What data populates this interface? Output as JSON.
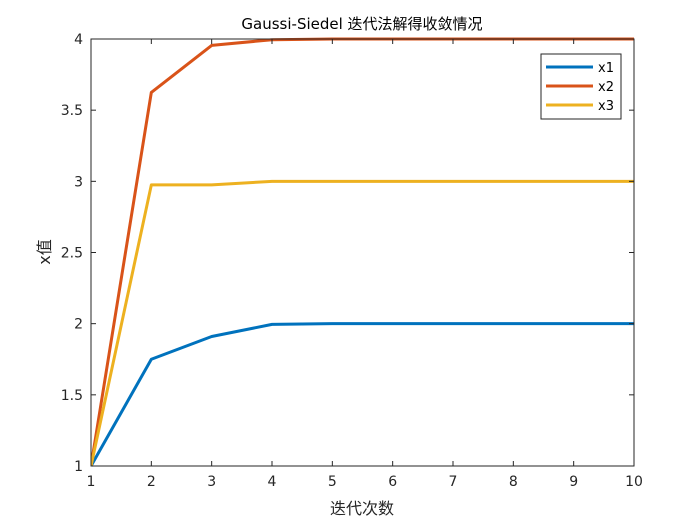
{
  "chart_data": {
    "type": "line",
    "title": "Gaussi-Siedel 迭代法解得收敛情况",
    "xlabel": "迭代次数",
    "ylabel": "x值",
    "xlim": [
      1,
      10
    ],
    "ylim": [
      1,
      4
    ],
    "x_ticks": [
      "1",
      "2",
      "3",
      "4",
      "5",
      "6",
      "7",
      "8",
      "9",
      "10"
    ],
    "y_ticks": [
      "1",
      "1.5",
      "2",
      "2.5",
      "3",
      "3.5",
      "4"
    ],
    "x": [
      1,
      2,
      3,
      4,
      5,
      6,
      7,
      8,
      9,
      10
    ],
    "series": [
      {
        "name": "x1",
        "color": "#0072BD",
        "values": [
          1,
          1.75,
          1.91,
          1.995,
          2.0,
          2.0,
          2.0,
          2.0,
          2.0,
          2.0
        ]
      },
      {
        "name": "x2",
        "color": "#D95319",
        "values": [
          1,
          3.625,
          3.955,
          3.995,
          4.0,
          4.0,
          4.0,
          4.0,
          4.0,
          4.0
        ]
      },
      {
        "name": "x3",
        "color": "#EDB120",
        "values": [
          1,
          2.975,
          2.975,
          3.0,
          3.0,
          3.0,
          3.0,
          3.0,
          3.0,
          3.0
        ]
      }
    ],
    "grid": false,
    "legend_position": "top-right"
  }
}
